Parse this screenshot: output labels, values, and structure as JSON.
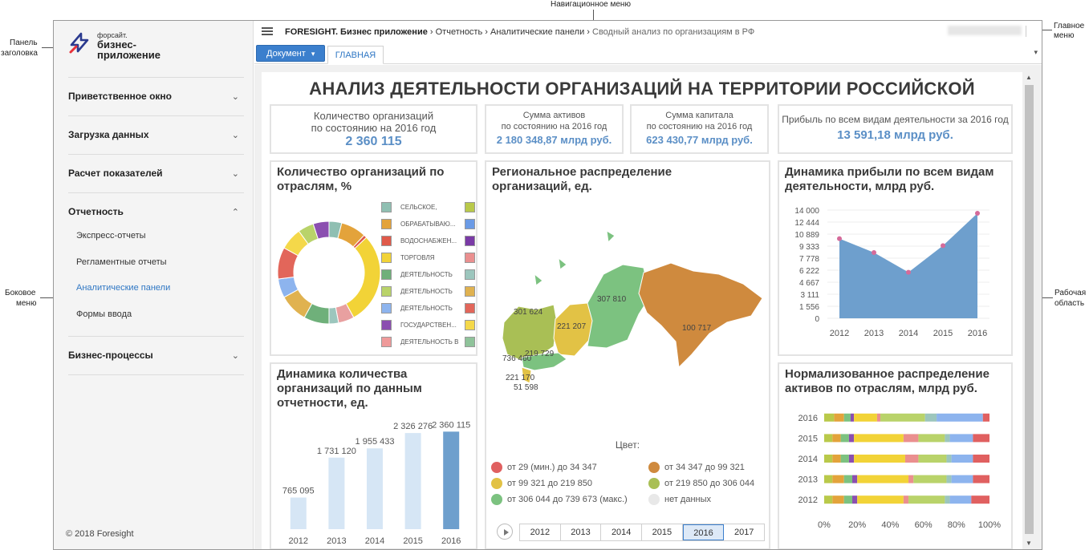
{
  "annotations": {
    "nav_menu": "Навигационное меню",
    "header_panel_1": "Панель",
    "header_panel_2": "заголовка",
    "main_menu_1": "Главное",
    "main_menu_2": "меню",
    "side_menu_1": "Боковое",
    "side_menu_2": "меню",
    "work_area_1": "Рабочая",
    "work_area_2": "область"
  },
  "logo": {
    "small": "форсайт.",
    "line1": "бизнес-",
    "line2": "приложение",
    "color": "#2b3a8f",
    "accent": "#e8313a"
  },
  "sidebar": {
    "sections": [
      {
        "label": "Приветственное окно",
        "chevron": "⌄"
      },
      {
        "label": "Загрузка данных",
        "chevron": "⌄"
      },
      {
        "label": "Расчет показателей",
        "chevron": "⌄"
      },
      {
        "label": "Отчетность",
        "chevron": "⌃"
      },
      {
        "label": "Бизнес-процессы",
        "chevron": "⌄"
      }
    ],
    "reporting_items": [
      "Экспресс-отчеты",
      "Регламентные отчеты",
      "Аналитические панели",
      "Формы ввода"
    ],
    "copyright": "© 2018 Foresight"
  },
  "breadcrumb": {
    "app": "FORESIGHT. Бизнес приложение",
    "sep": "›",
    "c1": "Отчетность",
    "c2": "Аналитические панели",
    "c3": "Сводный анализ по организациям в РФ"
  },
  "toolbar": {
    "document_label": "Документ",
    "caret": "▾",
    "tab_main": "ГЛАВНАЯ",
    "tabs_arrow": "▾"
  },
  "dashboard": {
    "title": "АНАЛИЗ ДЕЯТЕЛЬНОСТИ ОРГАНИЗАЦИЙ НА ТЕРРИТОРИИ РОССИЙСКОЙ",
    "kpi1": {
      "l1": "Количество организаций",
      "l2": "по состоянию на 2016 год",
      "value": "2 360 115"
    },
    "kpi2": {
      "l1": "Сумма активов",
      "l2": "по состоянию на 2016 год",
      "value": "2 180 348,87 млрд руб."
    },
    "kpi3": {
      "l1": "Сумма капитала",
      "l2": "по состоянию на 2016 год",
      "value": "623 430,77 млрд руб."
    },
    "kpi4": {
      "l1": "Прибыль по всем видам деятельности за 2016 год",
      "value": "13 591,18 млрд руб."
    },
    "w_donut_title_1": "Количество организаций по",
    "w_donut_title_2": "отраслям, %",
    "w_map_title_1": "Региональное распределение",
    "w_map_title_2": "организаций, ед.",
    "w_profit_title_1": "Динамика прибыли по всем видам",
    "w_profit_title_2": "деятельности, млрд руб.",
    "w_count_title_1": "Динамика количества",
    "w_count_title_2": "организаций по данным",
    "w_count_title_3": "отчетности, ед.",
    "w_norm_title_1": "Нормализованное распределение",
    "w_norm_title_2": "активов по отраслям, млрд руб."
  },
  "donut_legend": [
    {
      "label": "СЕЛЬСКОЕ,",
      "color": "#8fbfb2"
    },
    {
      "label": "ОБРАБАТЫВАЮ...",
      "color": "#e3a33b"
    },
    {
      "label": "ВОДОСНАБЖЕН...",
      "color": "#e05a4a"
    },
    {
      "label": "ТОРГОВЛЯ",
      "color": "#f2d337"
    },
    {
      "label": "ДЕЯТЕЛЬНОСТЬ",
      "color": "#6fb07a"
    },
    {
      "label": "ДЕЯТЕЛЬНОСТЬ",
      "color": "#b9d36a"
    },
    {
      "label": "ДЕЯТЕЛЬНОСТЬ",
      "color": "#8db4ee"
    },
    {
      "label": "ГОСУДАРСТВЕН...",
      "color": "#8b4fb0"
    },
    {
      "label": "ДЕЯТЕЛЬНОСТЬ В",
      "color": "#ef9a9a"
    }
  ],
  "donut_legend_col2": [
    "#b9c94a",
    "#6b9be6",
    "#7a3aa6",
    "#ea8f8f",
    "#9cc6bd",
    "#e0b250",
    "#e2665a",
    "#f4d84a",
    "#8fc39a"
  ],
  "map": {
    "labels": [
      "301 624",
      "221 207",
      "307 810",
      "100 717",
      "219 729",
      "736 460",
      "221 170",
      "51 598"
    ],
    "legend_title": "Цвет:",
    "legend": [
      {
        "label": "от 29 (мин.) до 34 347",
        "color": "#e06060"
      },
      {
        "label": "от 34 347 до 99 321",
        "color": "#cf8a3e"
      },
      {
        "label": "от 99 321 до 219 850",
        "color": "#e2c245"
      },
      {
        "label": "от 219 850 до 306 044",
        "color": "#a9bf55"
      },
      {
        "label": "от 306 044 до 739 673 (макс.)",
        "color": "#7cc280"
      },
      {
        "label": "нет данных",
        "color": "#e8e8e8"
      }
    ],
    "years": [
      "2012",
      "2013",
      "2014",
      "2015",
      "2016",
      "2017"
    ],
    "selected_year": "2016"
  },
  "chart_data": [
    {
      "type": "pie",
      "title": "Количество организаций по отраслям, %",
      "variant": "donut",
      "slices": [
        {
          "label": "СЕЛЬСКОЕ,",
          "value": 4
        },
        {
          "label": "ОБРАБАТЫВАЮ...",
          "value": 8
        },
        {
          "label": "ВОДОСНАБЖЕН...",
          "value": 1
        },
        {
          "label": "ТОРГОВЛЯ",
          "value": 29
        },
        {
          "label": "ДЕЯТЕЛЬНОСТЬ",
          "value": 5
        },
        {
          "label": "ДЕЯТЕЛЬНОСТЬ",
          "value": 3
        },
        {
          "label": "ДЕЯТЕЛЬНОСТЬ",
          "value": 8
        },
        {
          "label": "ГОСУДАРСТВЕН...",
          "value": 9
        },
        {
          "label": "ДЕЯТЕЛЬНОСТЬ В",
          "value": 6
        },
        {
          "label": "",
          "value": 10
        },
        {
          "label": "",
          "value": 7
        },
        {
          "label": "",
          "value": 5
        },
        {
          "label": "",
          "value": 5
        }
      ],
      "colors": [
        "#8fbfb2",
        "#e3a33b",
        "#e05a4a",
        "#f2d337",
        "#e8a0a0",
        "#9cc6bd",
        "#6fb07a",
        "#e0b250",
        "#8db4ee",
        "#e2665a",
        "#f4d84a",
        "#b9d36a",
        "#8b4fb0"
      ]
    },
    {
      "type": "area",
      "title": "Динамика прибыли по всем видам деятельности, млрд руб.",
      "x": [
        "2012",
        "2013",
        "2014",
        "2015",
        "2016"
      ],
      "values": [
        10300,
        8500,
        5950,
        9400,
        13591
      ],
      "yticks": [
        "14 000",
        "12 444",
        "10 889",
        "9 333",
        "7 778",
        "6 222",
        "4 667",
        "3 111",
        "1 556",
        "0"
      ],
      "ylim": [
        0,
        14000
      ],
      "fill": "#6e9fcd",
      "point": "#d56b9a"
    },
    {
      "type": "bar",
      "title": "Динамика количества организаций по данным отчетности, ед.",
      "categories": [
        "2012",
        "2013",
        "2014",
        "2015",
        "2016"
      ],
      "values": [
        765095,
        1731120,
        1955433,
        2326276,
        2360115
      ],
      "labels": [
        "765 095",
        "1 731 120",
        "1 955 433",
        "2 326 276",
        "2 360 115"
      ],
      "ylim": [
        0,
        2600000
      ],
      "color": "#d6e6f5",
      "highlight": "#6e9fcd"
    },
    {
      "type": "bar",
      "variant": "stacked-horizontal-100",
      "title": "Нормализованное распределение активов по отраслям, млрд руб.",
      "categories": [
        "2016",
        "2015",
        "2014",
        "2013",
        "2012"
      ],
      "xticks": [
        "0%",
        "20%",
        "40%",
        "60%",
        "80%",
        "100%"
      ],
      "segments": [
        [
          6,
          6,
          4,
          2,
          14,
          2,
          27,
          7,
          28,
          4
        ],
        [
          5,
          5,
          5,
          3,
          30,
          9,
          16,
          3,
          14,
          10
        ],
        [
          5,
          5,
          5,
          3,
          31,
          8,
          17,
          3,
          13,
          10
        ],
        [
          5,
          7,
          5,
          3,
          31,
          3,
          20,
          3,
          13,
          10
        ],
        [
          5,
          7,
          5,
          3,
          28,
          3,
          22,
          3,
          13,
          11
        ]
      ],
      "colors": [
        "#b9c94a",
        "#e3a33b",
        "#7cc280",
        "#8b4fb0",
        "#f2d337",
        "#ea8f8f",
        "#b9d36a",
        "#9cc6bd",
        "#8db4ee",
        "#e06060"
      ]
    }
  ]
}
